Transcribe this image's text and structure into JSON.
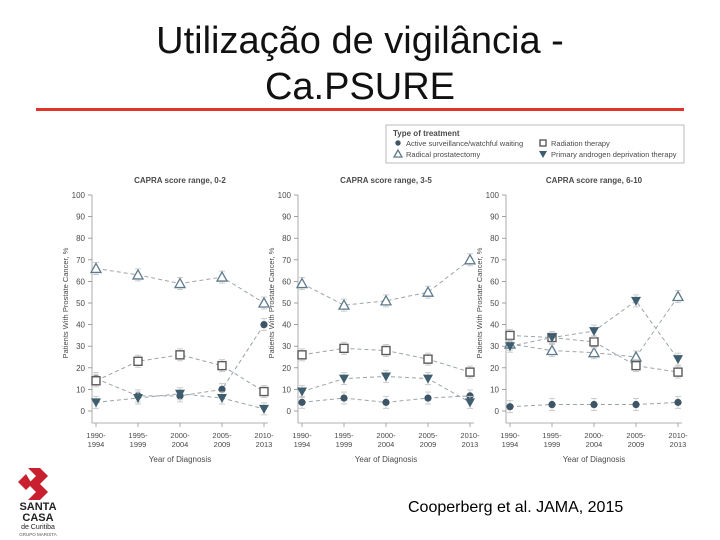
{
  "slide": {
    "title_line1": "Utilização de vigilância -",
    "title_line2": "Ca.PSURE",
    "citation": "Cooperberg et al. JAMA, 2015",
    "accent_color": "#e0342b"
  },
  "logo": {
    "line1": "SANTA",
    "line2": "CASA",
    "line3": "de Curitiba",
    "line4": "GRUPO MARISTA",
    "color": "#c8202e"
  },
  "chart_data": {
    "type": "line",
    "legend": {
      "title": "Type of treatment",
      "position": "top-right",
      "entries": [
        {
          "label": "Active surveillance/watchful waiting",
          "marker": "circle-filled"
        },
        {
          "label": "Radiation therapy",
          "marker": "square-open"
        },
        {
          "label": "Radical prostatectomy",
          "marker": "triangle-up-open"
        },
        {
          "label": "Primary androgen deprivation therapy",
          "marker": "triangle-down-filled"
        }
      ]
    },
    "categories": [
      "1990-\n1994",
      "1995-\n1999",
      "2000-\n2004",
      "2005-\n2009",
      "2010-\n2013"
    ],
    "xlabel": "Year of Diagnosis",
    "ylabel": "Patients With Prostate Cancer, %",
    "ylim": [
      0,
      100
    ],
    "yticks": [
      0,
      10,
      20,
      30,
      40,
      50,
      60,
      70,
      80,
      90,
      100
    ],
    "grid": false,
    "panels": [
      {
        "title": "CAPRA score range, 0-2",
        "series": [
          {
            "name": "Radical prostatectomy",
            "values": [
              66,
              63,
              59,
              62,
              50
            ]
          },
          {
            "name": "Active surveillance/watchful waiting",
            "values": [
              15,
              7,
              7,
              10,
              40
            ]
          },
          {
            "name": "Radiation therapy",
            "values": [
              14,
              23,
              26,
              21,
              9
            ]
          },
          {
            "name": "Primary androgen deprivation therapy",
            "values": [
              4,
              6,
              8,
              6,
              1
            ]
          }
        ]
      },
      {
        "title": "CAPRA score range, 3-5",
        "series": [
          {
            "name": "Radical prostatectomy",
            "values": [
              59,
              49,
              51,
              55,
              70
            ]
          },
          {
            "name": "Active surveillance/watchful waiting",
            "values": [
              4,
              6,
              4,
              6,
              7
            ]
          },
          {
            "name": "Radiation therapy",
            "values": [
              26,
              29,
              28,
              24,
              18
            ]
          },
          {
            "name": "Primary androgen deprivation therapy",
            "values": [
              9,
              15,
              16,
              15,
              4
            ]
          }
        ]
      },
      {
        "title": "CAPRA score range, 6-10",
        "series": [
          {
            "name": "Radical prostatectomy",
            "values": [
              31,
              28,
              27,
              25,
              53
            ]
          },
          {
            "name": "Active surveillance/watchful waiting",
            "values": [
              2,
              3,
              3,
              3,
              4
            ]
          },
          {
            "name": "Radiation therapy",
            "values": [
              35,
              34,
              32,
              21,
              18
            ]
          },
          {
            "name": "Primary androgen deprivation therapy",
            "values": [
              30,
              34,
              37,
              51,
              24
            ]
          }
        ]
      }
    ]
  }
}
